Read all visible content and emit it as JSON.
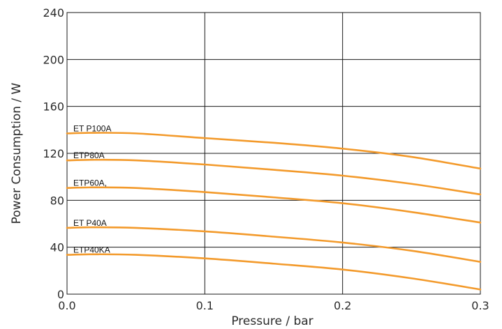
{
  "chart_data": {
    "type": "line",
    "xlabel": "Pressure / bar",
    "ylabel": "Power Consumption / W",
    "xlim": [
      0,
      0.3
    ],
    "ylim": [
      0,
      240
    ],
    "xticks": [
      0,
      0.1,
      0.2,
      0.3
    ],
    "xtick_labels": [
      "0.0",
      "0.1",
      "0.2",
      "0.3"
    ],
    "yticks": [
      0,
      40,
      80,
      120,
      160,
      200,
      240
    ],
    "ytick_labels": [
      "0",
      "40",
      "80",
      "120",
      "160",
      "200",
      "240"
    ],
    "grid": true,
    "legend": "none",
    "line_color": "#f39a2b",
    "series": [
      {
        "name": "ET P100A",
        "x": [
          0,
          0.02,
          0.05,
          0.1,
          0.15,
          0.2,
          0.25,
          0.3
        ],
        "y": [
          137,
          137.5,
          137,
          133,
          129,
          124,
          117,
          107
        ]
      },
      {
        "name": "ETP80A",
        "x": [
          0,
          0.02,
          0.05,
          0.1,
          0.15,
          0.2,
          0.25,
          0.3
        ],
        "y": [
          114,
          114.5,
          114,
          110.5,
          106,
          101,
          94,
          85
        ]
      },
      {
        "name": "ETP60A,",
        "x": [
          0,
          0.02,
          0.05,
          0.1,
          0.15,
          0.2,
          0.25,
          0.3
        ],
        "y": [
          90.5,
          91,
          90.5,
          87,
          82.5,
          77.5,
          70,
          61
        ]
      },
      {
        "name": "ET P40A",
        "x": [
          0,
          0.02,
          0.05,
          0.1,
          0.15,
          0.2,
          0.25,
          0.3
        ],
        "y": [
          56.5,
          57,
          56.5,
          53.5,
          49,
          44,
          37,
          27.5
        ]
      },
      {
        "name": "ETP40KA",
        "x": [
          0,
          0.02,
          0.05,
          0.1,
          0.15,
          0.2,
          0.25,
          0.3
        ],
        "y": [
          33.5,
          34,
          33.5,
          30.5,
          26,
          21,
          13.5,
          4
        ]
      }
    ]
  }
}
